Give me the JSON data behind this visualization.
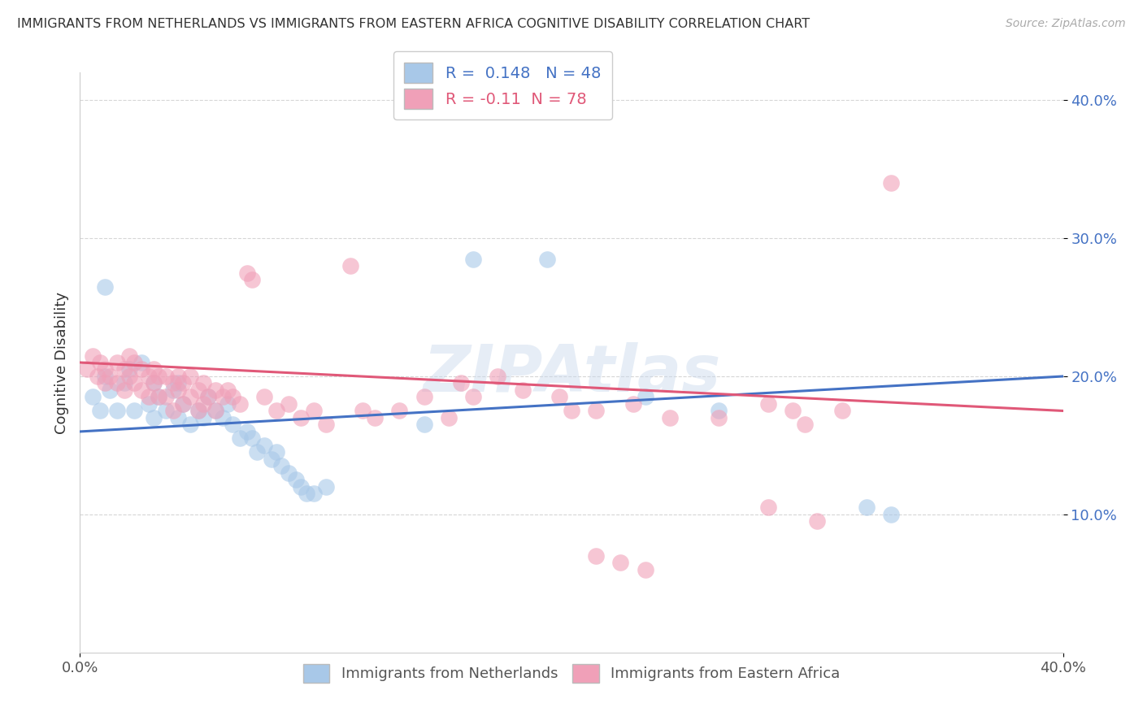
{
  "title": "IMMIGRANTS FROM NETHERLANDS VS IMMIGRANTS FROM EASTERN AFRICA COGNITIVE DISABILITY CORRELATION CHART",
  "source": "Source: ZipAtlas.com",
  "ylabel": "Cognitive Disability",
  "xlim": [
    0.0,
    0.4
  ],
  "ylim": [
    0.0,
    0.42
  ],
  "ytick_vals": [
    0.1,
    0.2,
    0.3,
    0.4
  ],
  "ytick_labels": [
    "10.0%",
    "20.0%",
    "30.0%",
    "40.0%"
  ],
  "blue_color": "#a8c8e8",
  "pink_color": "#f0a0b8",
  "blue_line_color": "#4472c4",
  "pink_line_color": "#e05878",
  "R_blue": 0.148,
  "N_blue": 48,
  "R_pink": -0.11,
  "N_pink": 78,
  "legend_label_blue": "Immigrants from Netherlands",
  "legend_label_pink": "Immigrants from Eastern Africa",
  "watermark": "ZIPAtlas",
  "blue_line_start_y": 0.16,
  "blue_line_end_y": 0.2,
  "pink_line_start_y": 0.21,
  "pink_line_end_y": 0.175,
  "blue_points": [
    [
      0.005,
      0.185
    ],
    [
      0.008,
      0.175
    ],
    [
      0.01,
      0.2
    ],
    [
      0.01,
      0.265
    ],
    [
      0.012,
      0.19
    ],
    [
      0.015,
      0.175
    ],
    [
      0.018,
      0.195
    ],
    [
      0.02,
      0.205
    ],
    [
      0.022,
      0.175
    ],
    [
      0.025,
      0.21
    ],
    [
      0.028,
      0.18
    ],
    [
      0.03,
      0.195
    ],
    [
      0.03,
      0.17
    ],
    [
      0.032,
      0.185
    ],
    [
      0.035,
      0.175
    ],
    [
      0.038,
      0.19
    ],
    [
      0.04,
      0.195
    ],
    [
      0.04,
      0.17
    ],
    [
      0.042,
      0.18
    ],
    [
      0.045,
      0.165
    ],
    [
      0.048,
      0.175
    ],
    [
      0.05,
      0.17
    ],
    [
      0.052,
      0.185
    ],
    [
      0.055,
      0.175
    ],
    [
      0.058,
      0.17
    ],
    [
      0.06,
      0.18
    ],
    [
      0.062,
      0.165
    ],
    [
      0.065,
      0.155
    ],
    [
      0.068,
      0.16
    ],
    [
      0.07,
      0.155
    ],
    [
      0.072,
      0.145
    ],
    [
      0.075,
      0.15
    ],
    [
      0.078,
      0.14
    ],
    [
      0.08,
      0.145
    ],
    [
      0.082,
      0.135
    ],
    [
      0.085,
      0.13
    ],
    [
      0.088,
      0.125
    ],
    [
      0.09,
      0.12
    ],
    [
      0.092,
      0.115
    ],
    [
      0.095,
      0.115
    ],
    [
      0.1,
      0.12
    ],
    [
      0.14,
      0.165
    ],
    [
      0.16,
      0.285
    ],
    [
      0.19,
      0.285
    ],
    [
      0.23,
      0.185
    ],
    [
      0.26,
      0.175
    ],
    [
      0.32,
      0.105
    ],
    [
      0.33,
      0.1
    ]
  ],
  "pink_points": [
    [
      0.003,
      0.205
    ],
    [
      0.005,
      0.215
    ],
    [
      0.007,
      0.2
    ],
    [
      0.008,
      0.21
    ],
    [
      0.01,
      0.205
    ],
    [
      0.01,
      0.195
    ],
    [
      0.012,
      0.2
    ],
    [
      0.015,
      0.21
    ],
    [
      0.015,
      0.195
    ],
    [
      0.018,
      0.205
    ],
    [
      0.018,
      0.19
    ],
    [
      0.02,
      0.215
    ],
    [
      0.02,
      0.2
    ],
    [
      0.022,
      0.21
    ],
    [
      0.022,
      0.195
    ],
    [
      0.025,
      0.205
    ],
    [
      0.025,
      0.19
    ],
    [
      0.028,
      0.2
    ],
    [
      0.028,
      0.185
    ],
    [
      0.03,
      0.205
    ],
    [
      0.03,
      0.195
    ],
    [
      0.032,
      0.2
    ],
    [
      0.032,
      0.185
    ],
    [
      0.035,
      0.2
    ],
    [
      0.035,
      0.185
    ],
    [
      0.038,
      0.195
    ],
    [
      0.038,
      0.175
    ],
    [
      0.04,
      0.2
    ],
    [
      0.04,
      0.19
    ],
    [
      0.042,
      0.195
    ],
    [
      0.042,
      0.18
    ],
    [
      0.045,
      0.2
    ],
    [
      0.045,
      0.185
    ],
    [
      0.048,
      0.19
    ],
    [
      0.048,
      0.175
    ],
    [
      0.05,
      0.195
    ],
    [
      0.05,
      0.18
    ],
    [
      0.052,
      0.185
    ],
    [
      0.055,
      0.19
    ],
    [
      0.055,
      0.175
    ],
    [
      0.058,
      0.185
    ],
    [
      0.06,
      0.19
    ],
    [
      0.062,
      0.185
    ],
    [
      0.065,
      0.18
    ],
    [
      0.068,
      0.275
    ],
    [
      0.07,
      0.27
    ],
    [
      0.075,
      0.185
    ],
    [
      0.08,
      0.175
    ],
    [
      0.085,
      0.18
    ],
    [
      0.09,
      0.17
    ],
    [
      0.095,
      0.175
    ],
    [
      0.1,
      0.165
    ],
    [
      0.11,
      0.28
    ],
    [
      0.115,
      0.175
    ],
    [
      0.12,
      0.17
    ],
    [
      0.13,
      0.175
    ],
    [
      0.14,
      0.185
    ],
    [
      0.15,
      0.17
    ],
    [
      0.155,
      0.195
    ],
    [
      0.16,
      0.185
    ],
    [
      0.17,
      0.2
    ],
    [
      0.18,
      0.19
    ],
    [
      0.195,
      0.185
    ],
    [
      0.2,
      0.175
    ],
    [
      0.21,
      0.175
    ],
    [
      0.225,
      0.18
    ],
    [
      0.24,
      0.17
    ],
    [
      0.26,
      0.17
    ],
    [
      0.28,
      0.18
    ],
    [
      0.29,
      0.175
    ],
    [
      0.295,
      0.165
    ],
    [
      0.31,
      0.175
    ],
    [
      0.28,
      0.105
    ],
    [
      0.3,
      0.095
    ],
    [
      0.33,
      0.34
    ],
    [
      0.22,
      0.065
    ],
    [
      0.23,
      0.06
    ],
    [
      0.21,
      0.07
    ]
  ]
}
